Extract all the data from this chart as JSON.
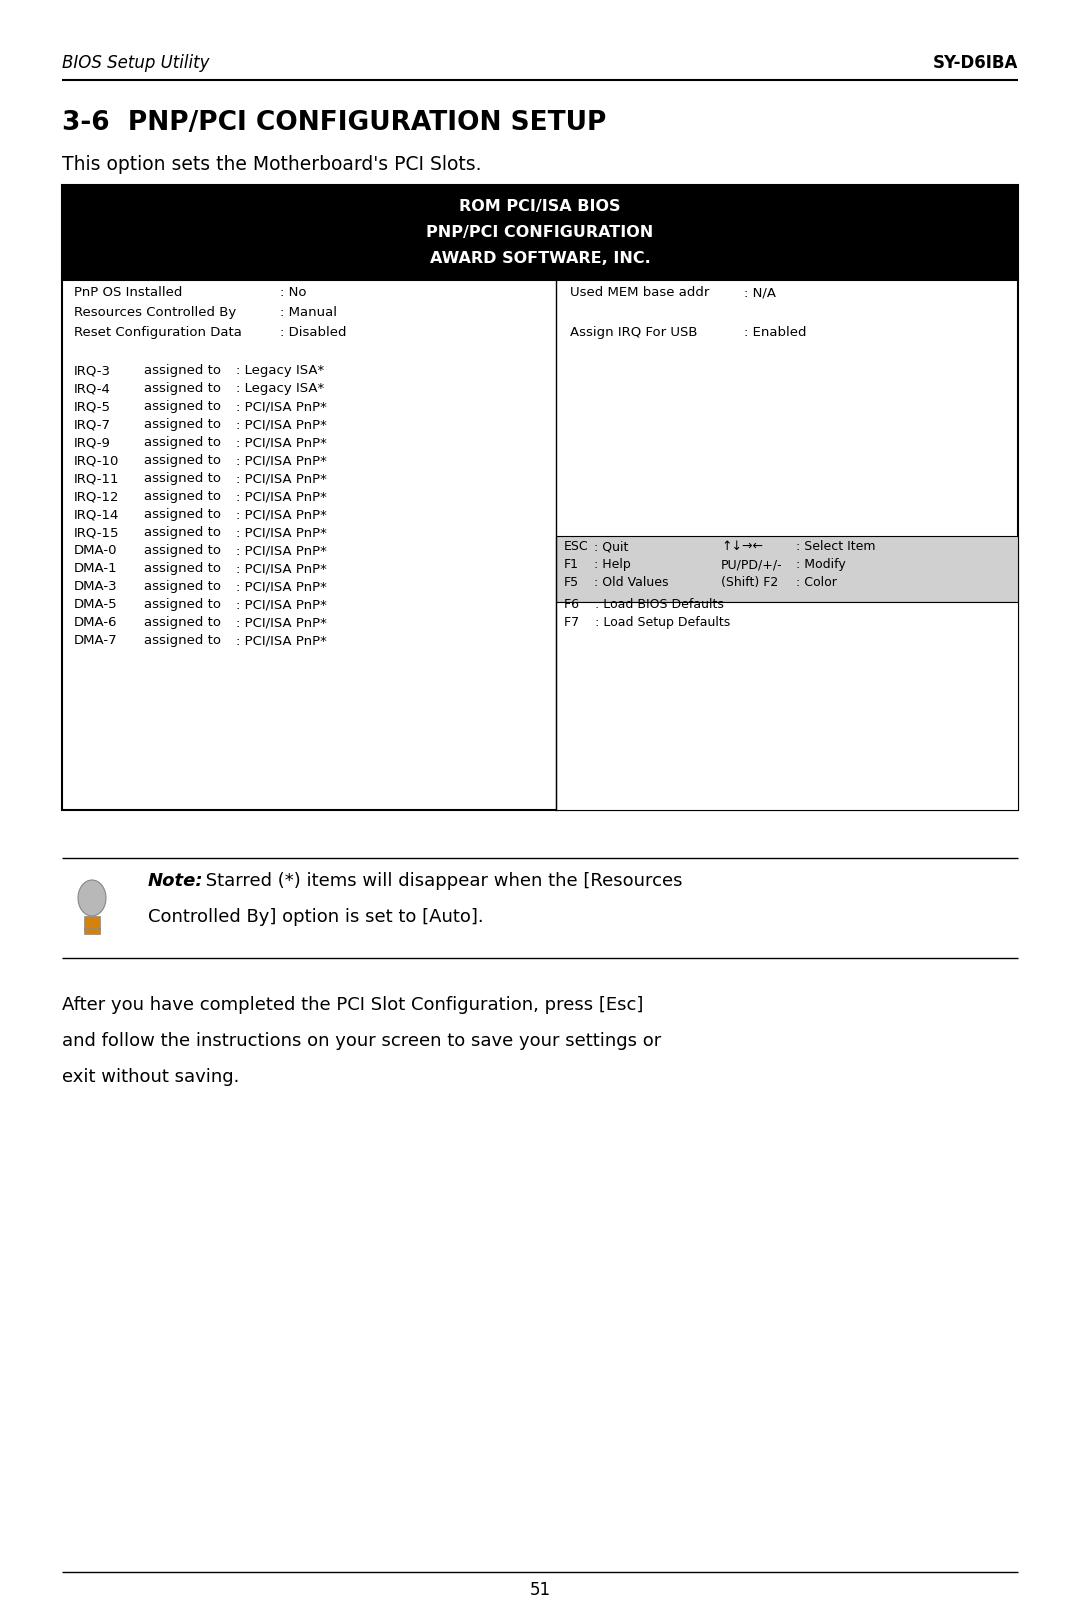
{
  "page_bg": "#ffffff",
  "header_italic_left": "BIOS Setup Utility",
  "header_bold_right": "SY-D6IBA",
  "section_title": "3-6  PNP/PCI CONFIGURATION SETUP",
  "subtitle": "This option sets the Motherboard's PCI Slots.",
  "bios_header_line1": "ROM PCI/ISA BIOS",
  "bios_header_line2": "PNP/PCI CONFIGURATION",
  "bios_header_line3": "AWARD SOFTWARE, INC.",
  "bios_header_bg": "#000000",
  "bios_header_fg": "#ffffff",
  "table_border": "#000000",
  "left_col_entries": [
    [
      "PnP OS Installed",
      ": No"
    ],
    [
      "Resources Controlled By",
      ": Manual"
    ],
    [
      "Reset Configuration Data",
      ": Disabled"
    ]
  ],
  "right_col_entries": [
    [
      "Used MEM base addr",
      ": N/A"
    ],
    [
      "",
      ""
    ],
    [
      "Assign IRQ For USB",
      ": Enabled"
    ]
  ],
  "irq_dma_entries": [
    [
      "IRQ-3",
      "assigned to",
      ": Legacy ISA*"
    ],
    [
      "IRQ-4",
      "assigned to",
      ": Legacy ISA*"
    ],
    [
      "IRQ-5",
      "assigned to",
      ": PCI/ISA PnP*"
    ],
    [
      "IRQ-7",
      "assigned to",
      ": PCI/ISA PnP*"
    ],
    [
      "IRQ-9",
      "assigned to",
      ": PCI/ISA PnP*"
    ],
    [
      "IRQ-10",
      "assigned to",
      ": PCI/ISA PnP*"
    ],
    [
      "IRQ-11",
      "assigned to",
      ": PCI/ISA PnP*"
    ],
    [
      "IRQ-12",
      "assigned to",
      ": PCI/ISA PnP*"
    ],
    [
      "IRQ-14",
      "assigned to",
      ": PCI/ISA PnP*"
    ],
    [
      "IRQ-15",
      "assigned to",
      ": PCI/ISA PnP*"
    ],
    [
      "DMA-0",
      "assigned to",
      ": PCI/ISA PnP*"
    ],
    [
      "DMA-1",
      "assigned to",
      ": PCI/ISA PnP*"
    ],
    [
      "DMA-3",
      "assigned to",
      ": PCI/ISA PnP*"
    ],
    [
      "DMA-5",
      "assigned to",
      ": PCI/ISA PnP*"
    ],
    [
      "DMA-6",
      "assigned to",
      ": PCI/ISA PnP*"
    ],
    [
      "DMA-7",
      "assigned to",
      ": PCI/ISA PnP*"
    ]
  ],
  "help_bg": "#d0d0d0",
  "help_entries_left": [
    [
      "ESC",
      ": Quit"
    ],
    [
      "F1",
      ": Help"
    ],
    [
      "F5",
      ": Old Values"
    ]
  ],
  "help_entries_right": [
    [
      "↑↓→←",
      ": Select Item"
    ],
    [
      "PU/PD/+/-",
      ": Modify"
    ],
    [
      "(Shift) F2",
      ": Color"
    ]
  ],
  "help_f6": "F6    : Load BIOS Defaults",
  "help_f7": "F7    : Load Setup Defaults",
  "note_bold": "Note:",
  "note_rest_line1": " Starred (*) items will disappear when the [Resources",
  "note_line2": "Controlled By] option is set to [Auto].",
  "body_line1": "After you have completed the PCI Slot Configuration, press [Esc]",
  "body_line2": "and follow the instructions on your screen to save your settings or",
  "body_line3": "exit without saving.",
  "page_number": "51"
}
